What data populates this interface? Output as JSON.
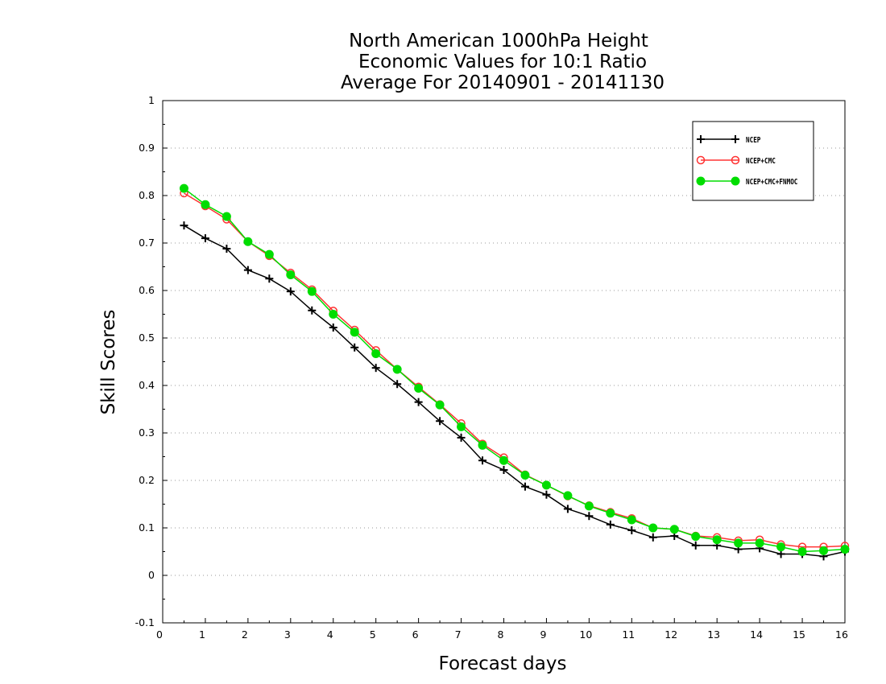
{
  "chart_data": {
    "type": "line",
    "title": [
      "North American 1000hPa Height",
      "Economic Values for 10:1 Ratio",
      "Average For 20140901 - 20141130"
    ],
    "xlabel": "Forecast days",
    "ylabel": "Skill Scores",
    "xlim": [
      0,
      16
    ],
    "ylim": [
      -0.1,
      1
    ],
    "xticks": [
      0,
      1,
      2,
      3,
      4,
      5,
      6,
      7,
      8,
      9,
      10,
      11,
      12,
      13,
      14,
      15,
      16
    ],
    "yticks": [
      -0.1,
      0,
      0.1,
      0.2,
      0.3,
      0.4,
      0.5,
      0.6,
      0.7,
      0.8,
      0.9,
      1
    ],
    "ytick_labels": [
      "-0.1",
      "0",
      "0.1",
      "0.2",
      "0.3",
      "0.4",
      "0.5",
      "0.6",
      "0.7",
      "0.8",
      "0.9",
      "1"
    ],
    "grid": "horizontal dotted",
    "legend_position": "top-right",
    "x": [
      0.5,
      1,
      1.5,
      2,
      2.5,
      3,
      3.5,
      4,
      4.5,
      5,
      5.5,
      6,
      6.5,
      7,
      7.5,
      8,
      8.5,
      9,
      9.5,
      10,
      10.5,
      11,
      11.5,
      12,
      12.5,
      13,
      13.5,
      14,
      14.5,
      15,
      15.5,
      16
    ],
    "series": [
      {
        "name": "NCEP",
        "color": "#000000",
        "marker": "plus",
        "values": [
          0.737,
          0.71,
          0.688,
          0.643,
          0.625,
          0.598,
          0.558,
          0.522,
          0.48,
          0.437,
          0.403,
          0.365,
          0.325,
          0.29,
          0.242,
          0.222,
          0.187,
          0.17,
          0.14,
          0.125,
          0.107,
          0.095,
          0.08,
          0.083,
          0.063,
          0.063,
          0.055,
          0.057,
          0.045,
          0.045,
          0.04,
          0.05
        ]
      },
      {
        "name": "NCEP+CMC",
        "color": "#ff3333",
        "marker": "open-circle",
        "values": [
          0.805,
          0.778,
          0.75,
          0.703,
          0.673,
          0.637,
          0.602,
          0.557,
          0.517,
          0.474,
          0.434,
          0.397,
          0.36,
          0.32,
          0.277,
          0.248,
          0.212,
          0.19,
          0.167,
          0.147,
          0.133,
          0.12,
          0.1,
          0.097,
          0.083,
          0.08,
          0.073,
          0.075,
          0.065,
          0.06,
          0.06,
          0.062
        ]
      },
      {
        "name": "NCEP+CMC+FNMOC",
        "color": "#00dd00",
        "marker": "filled-circle",
        "values": [
          0.815,
          0.781,
          0.756,
          0.703,
          0.676,
          0.633,
          0.598,
          0.55,
          0.512,
          0.467,
          0.434,
          0.394,
          0.359,
          0.313,
          0.274,
          0.242,
          0.211,
          0.19,
          0.168,
          0.146,
          0.131,
          0.117,
          0.1,
          0.097,
          0.082,
          0.075,
          0.068,
          0.068,
          0.06,
          0.05,
          0.052,
          0.055
        ]
      }
    ]
  }
}
